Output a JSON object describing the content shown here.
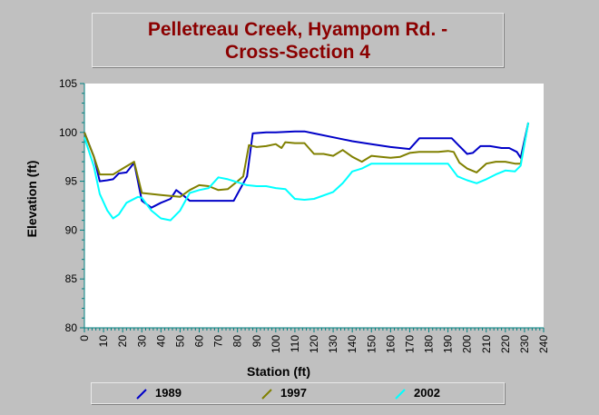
{
  "chart_data": {
    "type": "line",
    "title_lines": [
      "Pelletreau Creek, Hyampom Rd. -",
      "Cross-Section 4"
    ],
    "xlabel": "Station (ft)",
    "ylabel": "Elevation (ft)",
    "xlim": [
      0,
      240
    ],
    "ylim": [
      80,
      105
    ],
    "xticks": [
      "0",
      "10",
      "20",
      "30",
      "40",
      "50",
      "60",
      "70",
      "80",
      "90",
      "100",
      "110",
      "120",
      "130",
      "140",
      "150",
      "160",
      "170",
      "180",
      "190",
      "200",
      "210",
      "220",
      "230",
      "240"
    ],
    "yticks": [
      "80",
      "85",
      "90",
      "95",
      "100",
      "105"
    ],
    "grid": false,
    "legend_position": "bottom",
    "series": [
      {
        "name": "1989",
        "color": "#0000c8",
        "points": [
          [
            0,
            100.0
          ],
          [
            5,
            97.5
          ],
          [
            8,
            95.0
          ],
          [
            12,
            95.1
          ],
          [
            15,
            95.2
          ],
          [
            18,
            95.8
          ],
          [
            22,
            95.9
          ],
          [
            26,
            96.9
          ],
          [
            30,
            93.0
          ],
          [
            35,
            92.3
          ],
          [
            40,
            92.8
          ],
          [
            45,
            93.2
          ],
          [
            48,
            94.1
          ],
          [
            52,
            93.5
          ],
          [
            55,
            93.0
          ],
          [
            62,
            93.0
          ],
          [
            70,
            93.0
          ],
          [
            78,
            93.0
          ],
          [
            85,
            95.5
          ],
          [
            88,
            99.9
          ],
          [
            95,
            100.0
          ],
          [
            100,
            100.0
          ],
          [
            110,
            100.1
          ],
          [
            115,
            100.1
          ],
          [
            120,
            99.9
          ],
          [
            130,
            99.5
          ],
          [
            140,
            99.1
          ],
          [
            150,
            98.8
          ],
          [
            160,
            98.5
          ],
          [
            170,
            98.3
          ],
          [
            175,
            99.4
          ],
          [
            180,
            99.4
          ],
          [
            185,
            99.4
          ],
          [
            192,
            99.4
          ],
          [
            196,
            98.6
          ],
          [
            200,
            97.8
          ],
          [
            203,
            97.9
          ],
          [
            207,
            98.6
          ],
          [
            212,
            98.6
          ],
          [
            218,
            98.4
          ],
          [
            222,
            98.4
          ],
          [
            226,
            98.0
          ],
          [
            228,
            97.4
          ],
          [
            232,
            101.0
          ]
        ]
      },
      {
        "name": "1997",
        "color": "#808000",
        "points": [
          [
            0,
            100.0
          ],
          [
            5,
            97.5
          ],
          [
            8,
            95.7
          ],
          [
            12,
            95.7
          ],
          [
            15,
            95.7
          ],
          [
            20,
            96.3
          ],
          [
            26,
            97.0
          ],
          [
            30,
            93.8
          ],
          [
            35,
            93.7
          ],
          [
            40,
            93.6
          ],
          [
            45,
            93.5
          ],
          [
            50,
            93.4
          ],
          [
            55,
            94.1
          ],
          [
            60,
            94.6
          ],
          [
            65,
            94.5
          ],
          [
            70,
            94.1
          ],
          [
            75,
            94.2
          ],
          [
            80,
            95.0
          ],
          [
            83,
            95.5
          ],
          [
            86,
            98.7
          ],
          [
            90,
            98.5
          ],
          [
            95,
            98.6
          ],
          [
            100,
            98.8
          ],
          [
            103,
            98.4
          ],
          [
            105,
            99.0
          ],
          [
            110,
            98.9
          ],
          [
            115,
            98.9
          ],
          [
            120,
            97.8
          ],
          [
            125,
            97.8
          ],
          [
            130,
            97.6
          ],
          [
            135,
            98.2
          ],
          [
            140,
            97.5
          ],
          [
            145,
            97.0
          ],
          [
            150,
            97.6
          ],
          [
            155,
            97.5
          ],
          [
            160,
            97.4
          ],
          [
            165,
            97.5
          ],
          [
            170,
            97.9
          ],
          [
            175,
            98.0
          ],
          [
            180,
            98.0
          ],
          [
            185,
            98.0
          ],
          [
            190,
            98.1
          ],
          [
            193,
            98.0
          ],
          [
            196,
            96.9
          ],
          [
            200,
            96.3
          ],
          [
            205,
            95.9
          ],
          [
            210,
            96.8
          ],
          [
            215,
            97.0
          ],
          [
            220,
            97.0
          ],
          [
            225,
            96.8
          ],
          [
            228,
            96.8
          ],
          [
            232,
            101.0
          ]
        ]
      },
      {
        "name": "2002",
        "color": "#00ffff",
        "points": [
          [
            0,
            99.5
          ],
          [
            5,
            96.5
          ],
          [
            8,
            93.7
          ],
          [
            12,
            92.0
          ],
          [
            15,
            91.2
          ],
          [
            18,
            91.6
          ],
          [
            22,
            92.8
          ],
          [
            28,
            93.4
          ],
          [
            30,
            93.3
          ],
          [
            35,
            92.0
          ],
          [
            40,
            91.2
          ],
          [
            45,
            91.0
          ],
          [
            50,
            92.0
          ],
          [
            55,
            93.8
          ],
          [
            60,
            94.1
          ],
          [
            65,
            94.3
          ],
          [
            70,
            95.4
          ],
          [
            75,
            95.2
          ],
          [
            80,
            94.9
          ],
          [
            85,
            94.6
          ],
          [
            90,
            94.5
          ],
          [
            95,
            94.5
          ],
          [
            100,
            94.3
          ],
          [
            105,
            94.2
          ],
          [
            110,
            93.2
          ],
          [
            115,
            93.1
          ],
          [
            120,
            93.2
          ],
          [
            130,
            93.9
          ],
          [
            135,
            94.8
          ],
          [
            140,
            96.0
          ],
          [
            145,
            96.3
          ],
          [
            150,
            96.8
          ],
          [
            160,
            96.8
          ],
          [
            170,
            96.8
          ],
          [
            180,
            96.8
          ],
          [
            190,
            96.8
          ],
          [
            195,
            95.5
          ],
          [
            200,
            95.1
          ],
          [
            205,
            94.8
          ],
          [
            210,
            95.2
          ],
          [
            215,
            95.7
          ],
          [
            220,
            96.1
          ],
          [
            225,
            96.0
          ],
          [
            228,
            96.6
          ],
          [
            232,
            101.0
          ]
        ]
      }
    ]
  }
}
